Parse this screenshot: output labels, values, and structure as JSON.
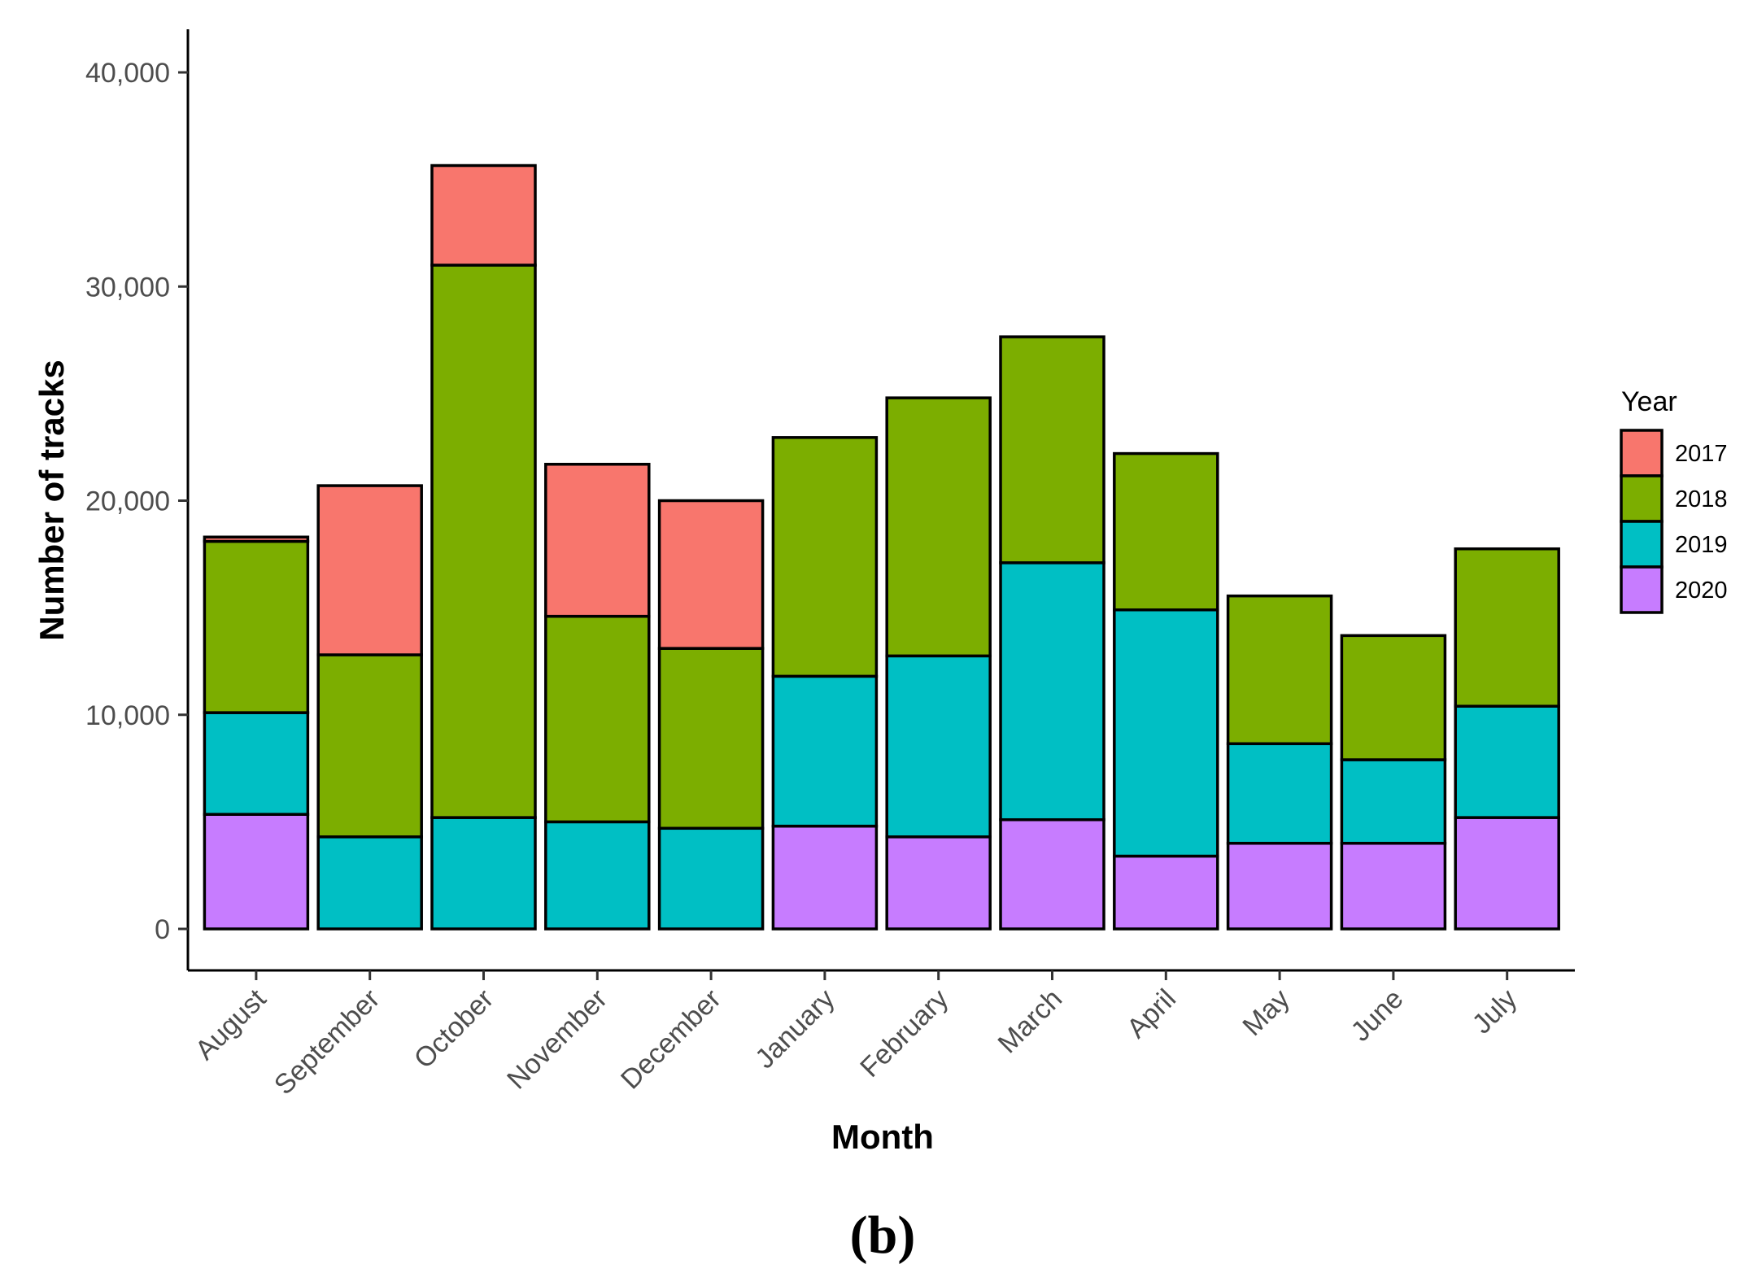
{
  "chart_data": {
    "type": "bar",
    "stacked": true,
    "title": "",
    "xlabel": "Month",
    "ylabel": "Number of tracks",
    "ylim": [
      0,
      42000
    ],
    "yticks": [
      0,
      10000,
      20000,
      30000,
      40000
    ],
    "ytick_labels": [
      "0",
      "10,000",
      "20,000",
      "30,000",
      "40,000"
    ],
    "categories": [
      "August",
      "September",
      "October",
      "November",
      "December",
      "January",
      "February",
      "March",
      "April",
      "May",
      "June",
      "July"
    ],
    "legend_title": "Year",
    "legend_position": "right",
    "series": [
      {
        "name": "2020",
        "color": "#C77CFF",
        "values": [
          5350,
          0,
          0,
          0,
          0,
          4800,
          4300,
          5100,
          3400,
          4000,
          4000,
          5200
        ]
      },
      {
        "name": "2019",
        "color": "#00BFC4",
        "values": [
          4750,
          4300,
          5200,
          5000,
          4700,
          7000,
          8450,
          12000,
          11500,
          4650,
          3900,
          5200
        ]
      },
      {
        "name": "2018",
        "color": "#7CAE00",
        "values": [
          8000,
          8500,
          25800,
          9600,
          8400,
          11150,
          12050,
          10550,
          7300,
          6900,
          5800,
          7350
        ]
      },
      {
        "name": "2017",
        "color": "#F8766D",
        "values": [
          200,
          7900,
          4650,
          7100,
          6900,
          0,
          0,
          0,
          0,
          0,
          0,
          0
        ]
      }
    ],
    "legend_order": [
      "2017",
      "2018",
      "2019",
      "2020"
    ],
    "grid": false
  },
  "panel_label": "(b)"
}
